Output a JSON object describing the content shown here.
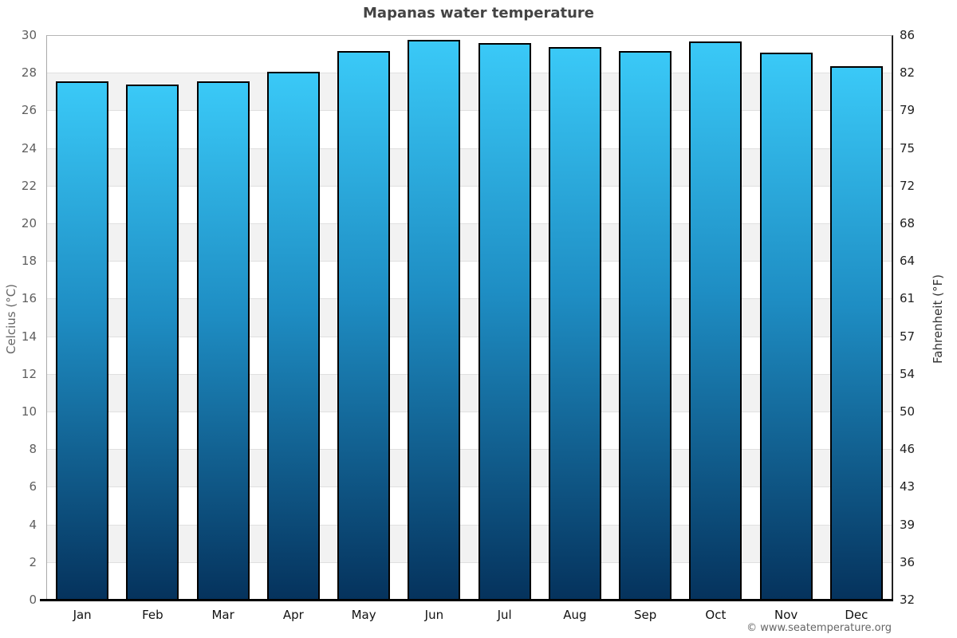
{
  "page": {
    "title": "Mapanas water temperature",
    "copyright": "© www.seatemperature.org"
  },
  "chart_data": {
    "type": "bar",
    "title": "Mapanas water temperature",
    "categories": [
      "Jan",
      "Feb",
      "Mar",
      "Apr",
      "May",
      "Jun",
      "Jul",
      "Aug",
      "Sep",
      "Oct",
      "Nov",
      "Dec"
    ],
    "series": [
      {
        "name": "Water temperature (°C)",
        "values": [
          27.6,
          27.4,
          27.6,
          28.1,
          29.2,
          29.8,
          29.6,
          29.4,
          29.2,
          29.7,
          29.1,
          28.4
        ]
      },
      {
        "name": "Water temperature (°F)",
        "values": [
          81.7,
          81.3,
          81.7,
          82.6,
          84.6,
          85.6,
          85.3,
          84.9,
          84.6,
          85.5,
          84.4,
          83.1
        ]
      }
    ],
    "xlabel": "",
    "ylabel_left": "Celcius (°C)",
    "ylabel_right": "Fahrenheit (°F)",
    "ylim": [
      0,
      30
    ],
    "y_left_ticks": [
      30,
      28,
      26,
      24,
      22,
      20,
      18,
      16,
      14,
      12,
      10,
      8,
      6,
      4,
      2,
      0
    ],
    "y_right_tick_labels": [
      "86",
      "82",
      "79",
      "75",
      "72",
      "68",
      "64",
      "61",
      "57",
      "54",
      "50",
      "46",
      "43",
      "39",
      "36",
      "32"
    ],
    "legend": "none",
    "grid": "alternating horizontal bands, light gridlines every 2°C",
    "colors": {
      "bar_gradient_top": "#3ac9f7",
      "bar_gradient_mid": "#1e8dc3",
      "bar_gradient_bottom": "#05325c",
      "bar_border": "#000000",
      "band_white": "#ffffff",
      "band_gray": "#f2f2f2",
      "left_tick_text": "#5f5f5f",
      "right_tick_text": "#222222"
    }
  }
}
